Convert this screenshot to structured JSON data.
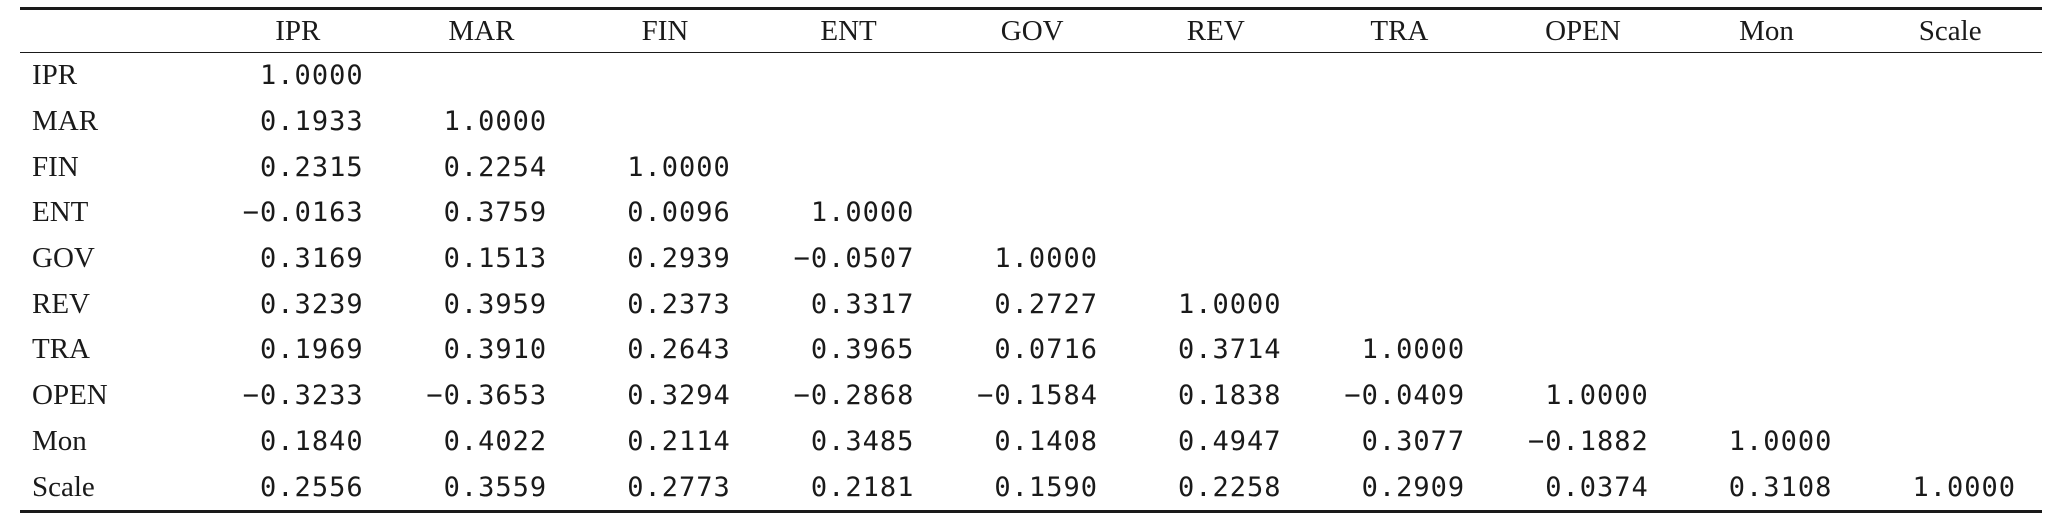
{
  "table": {
    "headers": [
      "",
      "IPR",
      "MAR",
      "FIN",
      "ENT",
      "GOV",
      "REV",
      "TRA",
      "OPEN",
      "Mon",
      "Scale"
    ],
    "rows": [
      {
        "label": "IPR",
        "values": [
          "1.0000",
          "",
          "",
          "",
          "",
          "",
          "",
          "",
          "",
          ""
        ]
      },
      {
        "label": "MAR",
        "values": [
          "0.1933",
          "1.0000",
          "",
          "",
          "",
          "",
          "",
          "",
          "",
          ""
        ]
      },
      {
        "label": "FIN",
        "values": [
          "0.2315",
          "0.2254",
          "1.0000",
          "",
          "",
          "",
          "",
          "",
          "",
          ""
        ]
      },
      {
        "label": "ENT",
        "values": [
          "−0.0163",
          "0.3759",
          "0.0096",
          "1.0000",
          "",
          "",
          "",
          "",
          "",
          ""
        ]
      },
      {
        "label": "GOV",
        "values": [
          "0.3169",
          "0.1513",
          "0.2939",
          "−0.0507",
          "1.0000",
          "",
          "",
          "",
          "",
          ""
        ]
      },
      {
        "label": "REV",
        "values": [
          "0.3239",
          "0.3959",
          "0.2373",
          "0.3317",
          "0.2727",
          "1.0000",
          "",
          "",
          "",
          ""
        ]
      },
      {
        "label": "TRA",
        "values": [
          "0.1969",
          "0.3910",
          "0.2643",
          "0.3965",
          "0.0716",
          "0.3714",
          "1.0000",
          "",
          "",
          ""
        ]
      },
      {
        "label": "OPEN",
        "values": [
          "−0.3233",
          "−0.3653",
          "0.3294",
          "−0.2868",
          "−0.1584",
          "0.1838",
          "−0.0409",
          "1.0000",
          "",
          ""
        ]
      },
      {
        "label": "Mon",
        "values": [
          "0.1840",
          "0.4022",
          "0.2114",
          "0.3485",
          "0.1408",
          "0.4947",
          "0.3077",
          "−0.1882",
          "1.0000",
          ""
        ]
      },
      {
        "label": "Scale",
        "values": [
          "0.2556",
          "0.3559",
          "0.2773",
          "0.2181",
          "0.1590",
          "0.2258",
          "0.2909",
          "0.0374",
          "0.3108",
          "1.0000"
        ]
      }
    ]
  }
}
